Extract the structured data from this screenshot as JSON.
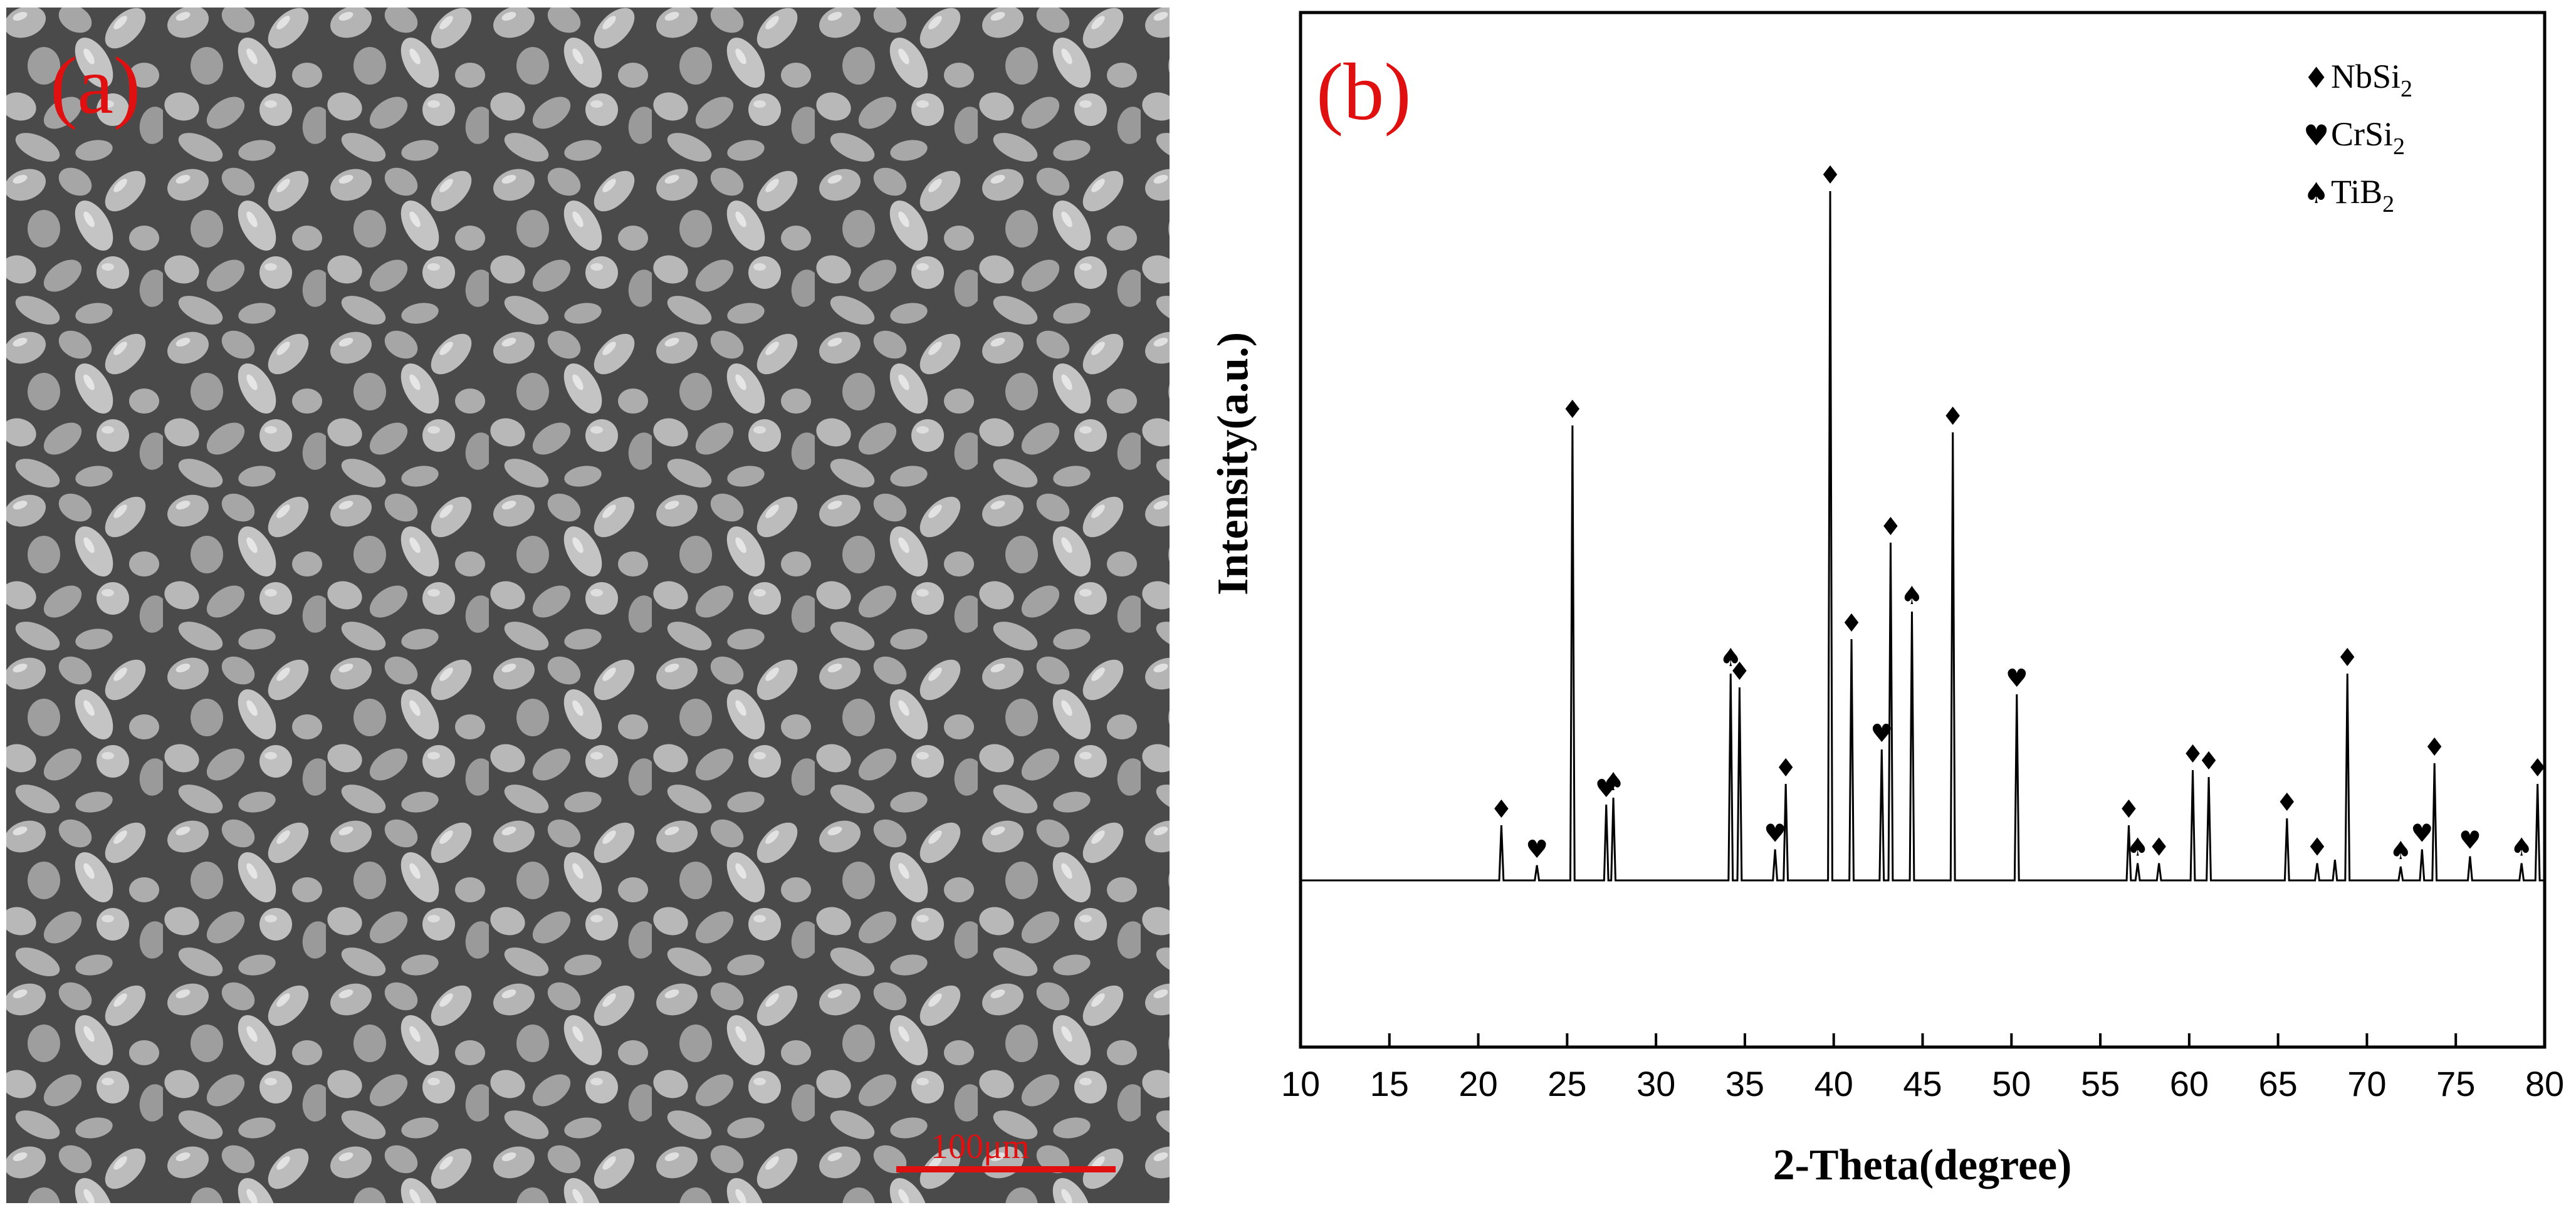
{
  "panels": {
    "a": {
      "label": "(a)"
    },
    "b": {
      "label": "(b)"
    }
  },
  "sem_image": {
    "description_icon": "sem-micrograph-grains",
    "scale_bar_label": "100μm",
    "label_color": "#e01010",
    "scale_bar_color": "#e01010"
  },
  "legend": {
    "entries": [
      {
        "symbol": "♦",
        "symbol_name": "diamond-icon",
        "text": "NbSi",
        "sub": "2"
      },
      {
        "symbol": "♥",
        "symbol_name": "heart-icon",
        "text": "CrSi",
        "sub": "2"
      },
      {
        "symbol": "♠",
        "symbol_name": "spade-icon",
        "text": "TiB",
        "sub": "2"
      }
    ]
  },
  "chart_data": {
    "type": "line",
    "title": "",
    "xlabel": "2-Theta(degree)",
    "ylabel": "Intensity(a.u.)",
    "xlim": [
      10,
      80
    ],
    "xticks": [
      10,
      15,
      20,
      25,
      30,
      35,
      40,
      45,
      50,
      55,
      60,
      65,
      70,
      75,
      80
    ],
    "grid": false,
    "legend_position": "top-right",
    "line_color": "#000000",
    "peaks": [
      {
        "x": 21.3,
        "h": 0.08,
        "phase": "NbSi2"
      },
      {
        "x": 23.3,
        "h": 0.022,
        "phase": "CrSi2"
      },
      {
        "x": 25.3,
        "h": 0.66,
        "phase": "NbSi2"
      },
      {
        "x": 27.2,
        "h": 0.11,
        "phase": "CrSi2"
      },
      {
        "x": 27.6,
        "h": 0.12,
        "phase": "TiB2"
      },
      {
        "x": 34.2,
        "h": 0.3,
        "phase": "TiB2"
      },
      {
        "x": 34.7,
        "h": 0.28,
        "phase": "NbSi2"
      },
      {
        "x": 36.7,
        "h": 0.045,
        "phase": "CrSi2"
      },
      {
        "x": 37.3,
        "h": 0.14,
        "phase": "NbSi2"
      },
      {
        "x": 39.8,
        "h": 1.0,
        "phase": "NbSi2"
      },
      {
        "x": 41.0,
        "h": 0.35,
        "phase": "NbSi2"
      },
      {
        "x": 42.7,
        "h": 0.19,
        "phase": "CrSi2"
      },
      {
        "x": 43.2,
        "h": 0.49,
        "phase": "NbSi2"
      },
      {
        "x": 44.4,
        "h": 0.39,
        "phase": "TiB2"
      },
      {
        "x": 46.7,
        "h": 0.65,
        "phase": "NbSi2"
      },
      {
        "x": 50.3,
        "h": 0.27,
        "phase": "CrSi2"
      },
      {
        "x": 56.6,
        "h": 0.08,
        "phase": "NbSi2"
      },
      {
        "x": 57.1,
        "h": 0.025,
        "phase": "TiB2"
      },
      {
        "x": 58.3,
        "h": 0.025,
        "phase": "NbSi2"
      },
      {
        "x": 60.2,
        "h": 0.16,
        "phase": "NbSi2"
      },
      {
        "x": 61.1,
        "h": 0.15,
        "phase": "NbSi2"
      },
      {
        "x": 65.5,
        "h": 0.09,
        "phase": "NbSi2"
      },
      {
        "x": 67.2,
        "h": 0.025,
        "phase": "NbSi2"
      },
      {
        "x": 68.2,
        "h": 0.03,
        "phase": ""
      },
      {
        "x": 68.9,
        "h": 0.3,
        "phase": "NbSi2"
      },
      {
        "x": 71.9,
        "h": 0.02,
        "phase": "TiB2"
      },
      {
        "x": 73.1,
        "h": 0.045,
        "phase": "CrSi2"
      },
      {
        "x": 73.8,
        "h": 0.17,
        "phase": "NbSi2"
      },
      {
        "x": 75.8,
        "h": 0.035,
        "phase": "CrSi2"
      },
      {
        "x": 78.7,
        "h": 0.025,
        "phase": "TiB2"
      },
      {
        "x": 79.6,
        "h": 0.14,
        "phase": "NbSi2"
      }
    ]
  }
}
